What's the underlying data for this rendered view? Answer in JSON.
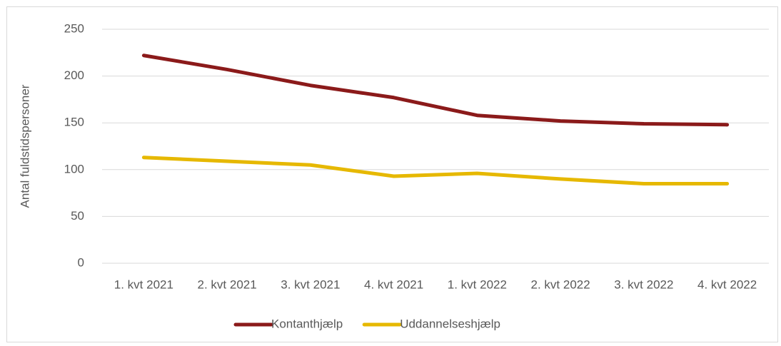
{
  "chart_data": {
    "type": "line",
    "y_label": "Antal fuldstidspersoner",
    "categories": [
      "1. kvt 2021",
      "2. kvt 2021",
      "3. kvt 2021",
      "4. kvt 2021",
      "1. kvt 2022",
      "2. kvt 2022",
      "3. kvt 2022",
      "4. kvt 2022"
    ],
    "series": [
      {
        "name": "Kontanthjælp",
        "color": "#8b1a1a",
        "values": [
          222,
          207,
          190,
          177,
          158,
          152,
          149,
          148
        ]
      },
      {
        "name": "Uddannelseshjælp",
        "color": "#e6b800",
        "values": [
          113,
          109,
          105,
          93,
          96,
          90,
          85,
          85
        ]
      }
    ],
    "ylim": [
      0,
      250
    ],
    "yticks": [
      0,
      50,
      100,
      150,
      200,
      250
    ],
    "grid": true,
    "legend": "bottom"
  }
}
